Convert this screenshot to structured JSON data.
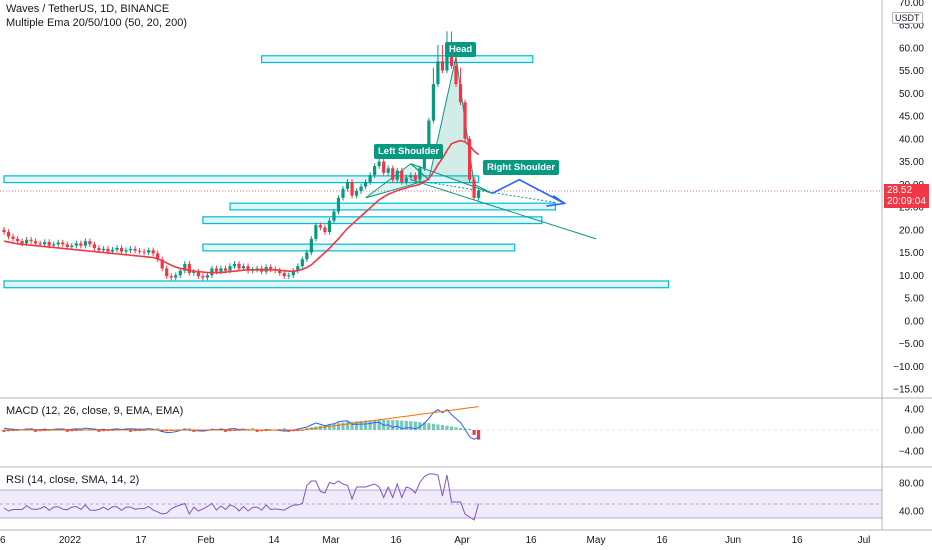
{
  "header": {
    "title": "Waves / TetherUS, 1D, BINANCE",
    "indicator": "Multiple Ema 20/50/100 (50, 20, 200)",
    "currency": "USDT"
  },
  "price": {
    "last": "28.52",
    "countdown": "20:09:04"
  },
  "annotations": {
    "head": "Head",
    "left_shoulder": "Left Shoulder",
    "right_shoulder": "Right Shoulder"
  },
  "macd": {
    "title": "MACD (12, 26, close, 9, EMA, EMA)",
    "ticks": [
      "4.00",
      "0.00",
      "−4.00"
    ]
  },
  "rsi": {
    "title": "RSI (14, close, SMA, 14, 2)",
    "ticks": [
      "80.00",
      "40.00"
    ]
  },
  "x_axis": [
    "6",
    "2022",
    "17",
    "Feb",
    "14",
    "Mar",
    "16",
    "Apr",
    "16",
    "May",
    "16",
    "Jun",
    "16",
    "Jul"
  ],
  "colors": {
    "up": "#089981",
    "down": "#f23645",
    "ema": "#f23645",
    "zone": "#00bcd4",
    "projection": "#2962ff"
  },
  "chart_data": {
    "type": "candlestick",
    "y_ticks": [
      70,
      65,
      60,
      55,
      50,
      45,
      40,
      35,
      30,
      25,
      20,
      15,
      10,
      5,
      0,
      -5,
      -10,
      -15
    ],
    "ylim": [
      -17,
      72
    ],
    "close": [
      19.5,
      18.5,
      18,
      17.5,
      17,
      17.8,
      17.5,
      17,
      16.8,
      17.3,
      16.5,
      16.8,
      17.2,
      16.8,
      16.2,
      16.5,
      17,
      16.5,
      17.5,
      16.8,
      16,
      15.5,
      15.8,
      15.2,
      15.6,
      16,
      15.2,
      15.5,
      15.8,
      15.4,
      15.2,
      15,
      15.5,
      14.8,
      13.5,
      11.5,
      9.8,
      9.5,
      10,
      11,
      12.5,
      10.5,
      10.8,
      9.8,
      9.5,
      10,
      11.5,
      10.8,
      11.5,
      11,
      12,
      12.5,
      11.5,
      12,
      11,
      11.2,
      11.5,
      10.8,
      11.8,
      11.3,
      11,
      10.5,
      9.8,
      10,
      11,
      12,
      13.5,
      15,
      18,
      21,
      20.5,
      19.5,
      22,
      24,
      27,
      29,
      30.5,
      27.5,
      28.5,
      29.5,
      30.5,
      32,
      34,
      35,
      32.5,
      33.5,
      31,
      33,
      30.5,
      31.5,
      32,
      31,
      33.5,
      38,
      44,
      52,
      57,
      55,
      60,
      56,
      52,
      48,
      40,
      31,
      27,
      28.52
    ],
    "ema": [
      17.5,
      17.3,
      17.1,
      16.9,
      16.8,
      16.7,
      16.6,
      16.5,
      16.4,
      16.3,
      16.2,
      16.1,
      16,
      15.9,
      15.8,
      15.7,
      15.6,
      15.5,
      15.4,
      15.3,
      15.2,
      15.1,
      15,
      14.9,
      14.8,
      14.7,
      14.6,
      14.5,
      14.4,
      14.3,
      14.2,
      14.1,
      14,
      13.9,
      13.6,
      13.2,
      12.7,
      12.2,
      11.8,
      11.5,
      11.3,
      11.1,
      10.9,
      10.8,
      10.7,
      10.6,
      10.6,
      10.6,
      10.6,
      10.7,
      10.8,
      10.9,
      11,
      11.1,
      11.2,
      11.2,
      11.2,
      11.2,
      11.2,
      11.2,
      11.2,
      11.1,
      11,
      10.9,
      10.9,
      11,
      11.3,
      11.7,
      12.3,
      13.2,
      14.1,
      15,
      15.9,
      17,
      18,
      19.2,
      20.3,
      21.2,
      22.1,
      23,
      23.9,
      24.8,
      25.7,
      26.6,
      27.2,
      27.8,
      28.2,
      28.6,
      28.9,
      29.2,
      29.5,
      29.7,
      30,
      30.5,
      31.3,
      32.6,
      34.3,
      35.7,
      37.4,
      38.9,
      39.3,
      39.6,
      39.3,
      38.5,
      37.3,
      36.5
    ],
    "zones": [
      {
        "from_day": 57,
        "to_day": 117,
        "low": 57.2,
        "high": 57.8
      },
      {
        "from_day": 0,
        "to_day": 105,
        "low": 30.8,
        "high": 31.4
      },
      {
        "from_day": 50,
        "to_day": 122,
        "low": 24.8,
        "high": 25.4
      },
      {
        "from_day": 44,
        "to_day": 119,
        "low": 21.8,
        "high": 22.4
      },
      {
        "from_day": 44,
        "to_day": 113,
        "low": 15.8,
        "high": 16.4
      },
      {
        "from_day": 0,
        "to_day": 147,
        "low": 7.7,
        "high": 8.3
      }
    ]
  }
}
